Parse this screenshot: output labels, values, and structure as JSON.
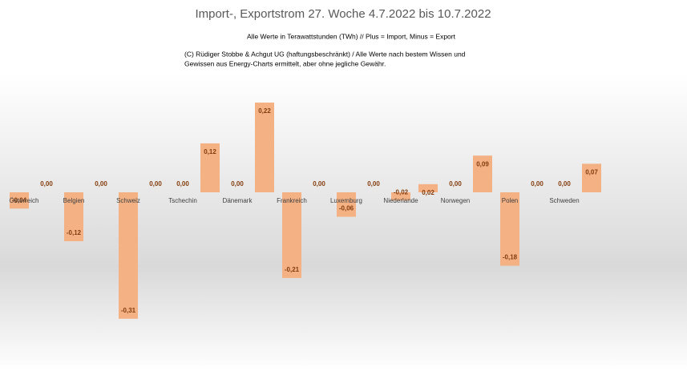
{
  "chart_data": {
    "type": "bar",
    "title": "Import-, Exportstrom 27. Woche 4.7.2022 bis 10.7.2022",
    "subtitle": "Alle Werte in Terawattstunden (TWh) // Plus = Import, Minus = Export",
    "notes": [
      "(C) Rüdiger Stobbe & Achgut UG (haftungsbeschränkt) / Alle Werte nach bestem Wissen und",
      "Gewissen aus Energy-Charts ermittelt, aber ohne jegliche Gewähr."
    ],
    "categories": [
      "Österreich",
      null,
      "Belgien",
      null,
      "Schweiz",
      null,
      "Tschechin",
      null,
      "Dänemark",
      null,
      "Frankreich",
      null,
      "Luxemburg",
      null,
      "Niederlande",
      null,
      "Norwegen",
      null,
      "Polen",
      null,
      "Schweden",
      null
    ],
    "values": [
      -0.04,
      0.0,
      -0.12,
      0.0,
      -0.31,
      0.0,
      0.0,
      0.12,
      0.0,
      0.22,
      -0.21,
      0.0,
      -0.06,
      0.0,
      -0.02,
      0.02,
      0.0,
      0.09,
      -0.18,
      0.0,
      0.0,
      0.07
    ],
    "value_labels": [
      "-0,04",
      "0,00",
      "-0,12",
      "0,00",
      "-0,31",
      "0,00",
      "0,00",
      "0,12",
      "0,00",
      "0,22",
      "-0,21",
      "0,00",
      "-0,06",
      "0,00",
      "-0,02",
      "0,02",
      "0,00",
      "0,09",
      "-0,18",
      "0,00",
      "0,00",
      "0,07"
    ],
    "color": "#f4b183"
  }
}
